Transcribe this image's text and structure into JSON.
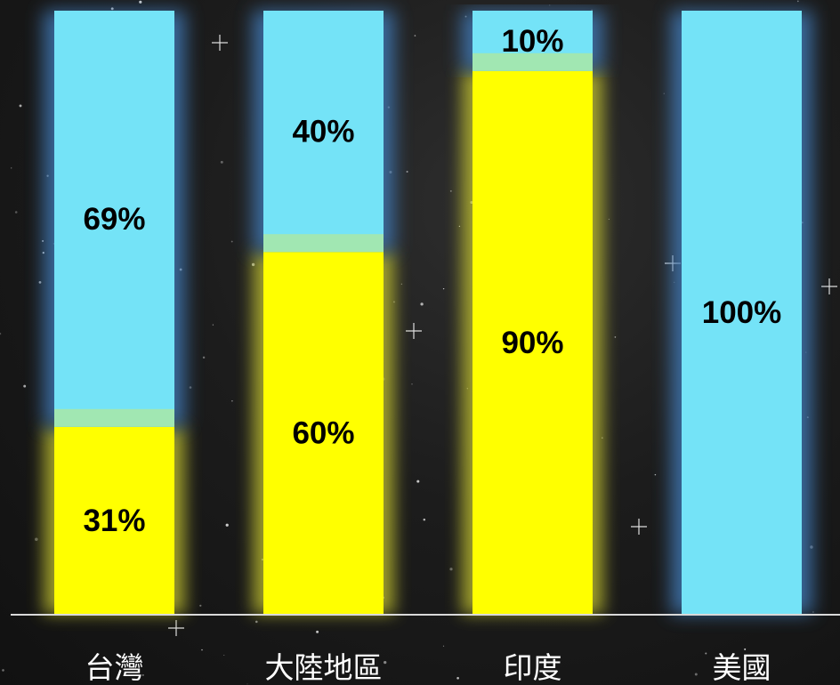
{
  "chart_data": {
    "type": "bar",
    "stacked": true,
    "percent_stacked": true,
    "categories": [
      "台灣",
      "大陸地區",
      "印度",
      "美國"
    ],
    "series": [
      {
        "color": "#ffff00",
        "values": [
          31,
          60,
          90,
          0
        ]
      },
      {
        "color": "#74e3f7",
        "values": [
          69,
          40,
          10,
          100
        ]
      }
    ],
    "data_labels": [
      [
        "31%",
        "60%",
        "90%",
        ""
      ],
      [
        "69%",
        "40%",
        "10%",
        "100%"
      ]
    ],
    "ylim": [
      0,
      100
    ],
    "grid": false,
    "legend": "none",
    "background": "#1c1c1c",
    "axis_color": "#d9d9d9",
    "label_color": "#000000",
    "category_label_color": "#ffffff"
  }
}
